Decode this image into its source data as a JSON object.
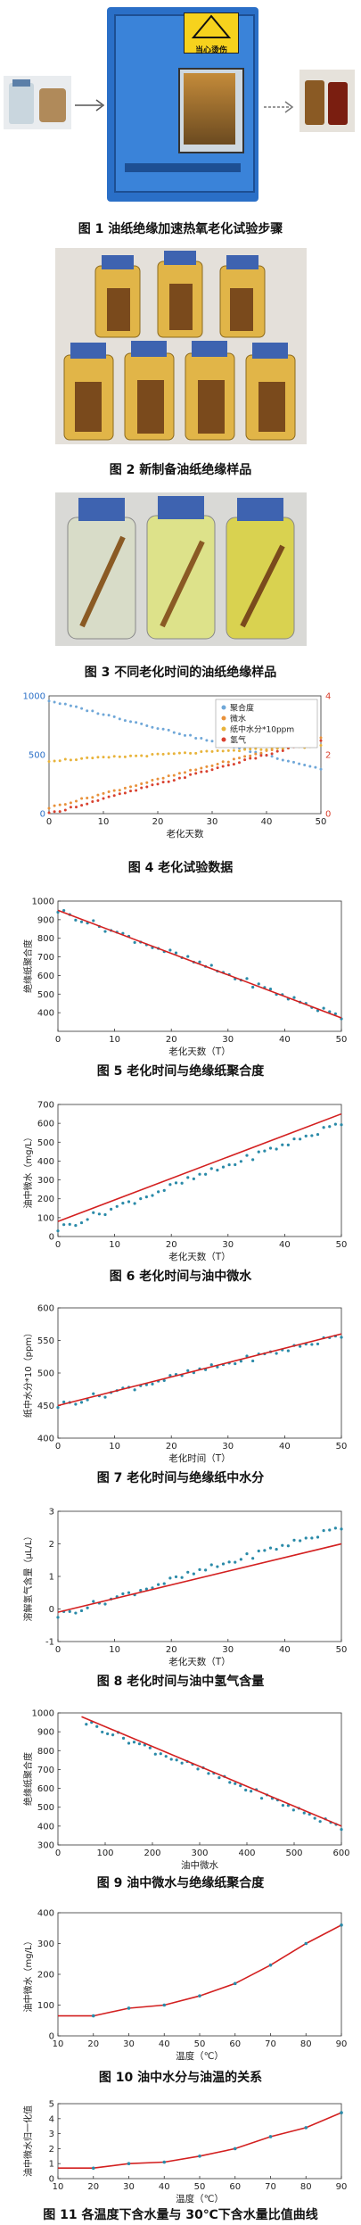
{
  "captions": {
    "fig1": "图 1  油纸绝缘加速热氧老化试验步骤",
    "fig2": "图 2  新制备油纸绝缘样品",
    "fig3": "图 3  不同老化时间的油纸绝缘样品",
    "fig4": "图 4  老化试验数据",
    "fig5": "图 5  老化时间与绝缘纸聚合度",
    "fig6": "图 6  老化时间与油中微水",
    "fig7": "图 7  老化时间与绝缘纸中水分",
    "fig8": "图 8  老化时间与油中氢气含量",
    "fig9": "图 9  油中微水与绝缘纸聚合度",
    "fig10": "图 10  油中水分与油温的关系",
    "fig11": "图 11  各温度下含水量与 30℃下含水量比值曲线"
  },
  "oven": {
    "warning_label": "当心烫伤"
  },
  "chart_data": [
    {
      "id": "fig4",
      "type": "scatter",
      "xlabel": "老化天数",
      "xlim": [
        0,
        50
      ],
      "ylim_left": [
        0,
        1000
      ],
      "ylim_right": [
        0,
        4
      ],
      "xticks": [
        0,
        10,
        20,
        30,
        40,
        50
      ],
      "yticks_left": [
        0,
        500,
        1000
      ],
      "yticks_right": [
        0,
        2,
        4
      ],
      "legend_position": "top-right",
      "series": [
        {
          "name": "聚合度",
          "color": "#6fa7d8",
          "axis": "left",
          "y0": 960,
          "y1": 380
        },
        {
          "name": "微水",
          "color": "#e8913a",
          "axis": "right",
          "y0": 0.2,
          "y1": 2.6
        },
        {
          "name": "纸中水分*10ppm",
          "color": "#e8b33a",
          "axis": "right",
          "y0": 1.8,
          "y1": 2.3
        },
        {
          "name": "氢气",
          "color": "#d9412f",
          "axis": "right",
          "y0": 0.0,
          "y1": 2.5
        }
      ]
    },
    {
      "id": "fig5",
      "type": "scatter",
      "ylabel": "绝缘纸聚合度",
      "xlabel": "老化天数（T）",
      "xlim": [
        0,
        50
      ],
      "ylim": [
        300,
        1000
      ],
      "xticks": [
        0,
        10,
        20,
        30,
        40,
        50
      ],
      "yticks": [
        400,
        500,
        600,
        700,
        800,
        900,
        1000
      ],
      "fit": {
        "y0": 950,
        "y1": 372
      },
      "points": {
        "y0": 950,
        "y1": 375
      }
    },
    {
      "id": "fig6",
      "type": "scatter",
      "ylabel": "油中微水（mg/L）",
      "xlabel": "老化天数（T）",
      "xlim": [
        0,
        50
      ],
      "ylim": [
        0,
        700
      ],
      "xticks": [
        0,
        10,
        20,
        30,
        40,
        50
      ],
      "yticks": [
        0,
        100,
        200,
        300,
        400,
        500,
        600,
        700
      ],
      "fit": {
        "y0": 80,
        "y1": 650
      },
      "points": {
        "y0": 40,
        "y1": 600
      }
    },
    {
      "id": "fig7",
      "type": "scatter",
      "ylabel": "纸中水分*10（ppm）",
      "xlabel": "老化时间（T）",
      "xlim": [
        0,
        50
      ],
      "ylim": [
        400,
        600
      ],
      "xticks": [
        0,
        10,
        20,
        30,
        40,
        50
      ],
      "yticks": [
        400,
        450,
        500,
        550,
        600
      ],
      "fit": {
        "y0": 450,
        "y1": 560
      },
      "points": {
        "y0": 450,
        "y1": 557
      }
    },
    {
      "id": "fig8",
      "type": "scatter",
      "ylabel": "溶解氢气含量（μL/L）",
      "xlabel": "老化天数（T）",
      "xlim": [
        0,
        50
      ],
      "ylim": [
        -1,
        3
      ],
      "xticks": [
        0,
        10,
        20,
        30,
        40,
        50
      ],
      "yticks": [
        -1,
        0,
        1,
        2,
        3
      ],
      "fit": {
        "y0": -0.1,
        "y1": 2.0
      },
      "points": {
        "y0": -0.2,
        "y1": 2.5
      }
    },
    {
      "id": "fig9",
      "type": "scatter",
      "ylabel": "绝缘纸聚合度",
      "xlabel": "油中微水",
      "xlim": [
        0,
        600
      ],
      "ylim": [
        300,
        1000
      ],
      "xticks": [
        0,
        100,
        200,
        300,
        400,
        500,
        600
      ],
      "yticks": [
        300,
        400,
        500,
        600,
        700,
        800,
        900,
        1000
      ],
      "fit": {
        "x0": 50,
        "y0": 980,
        "x1": 600,
        "y1": 400
      },
      "points": {
        "x0": 60,
        "y0": 950,
        "x1": 600,
        "y1": 390
      }
    },
    {
      "id": "fig10",
      "type": "line",
      "ylabel": "油中微水（mg/L）",
      "xlabel": "温度（℃）",
      "xlim": [
        10,
        90
      ],
      "ylim": [
        0,
        400
      ],
      "xticks": [
        10,
        20,
        30,
        40,
        50,
        60,
        70,
        80,
        90
      ],
      "yticks": [
        0,
        100,
        200,
        300,
        400
      ],
      "x": [
        20,
        30,
        40,
        50,
        60,
        70,
        80,
        90
      ],
      "y": [
        65,
        90,
        100,
        130,
        170,
        230,
        300,
        360
      ]
    },
    {
      "id": "fig11",
      "type": "line",
      "ylabel": "油中微水归一化值",
      "xlabel": "温度（℃）",
      "xlim": [
        10,
        90
      ],
      "ylim": [
        0,
        5
      ],
      "xticks": [
        10,
        20,
        30,
        40,
        50,
        60,
        70,
        80,
        90
      ],
      "yticks": [
        0,
        1,
        2,
        3,
        4,
        5
      ],
      "x": [
        20,
        30,
        40,
        50,
        60,
        70,
        80,
        90
      ],
      "y": [
        0.7,
        1.0,
        1.1,
        1.5,
        2.0,
        2.8,
        3.4,
        4.4
      ]
    }
  ]
}
